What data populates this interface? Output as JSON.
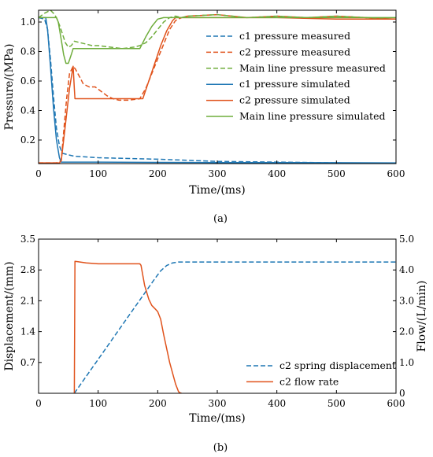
{
  "colors": {
    "blue": "#1f77b4",
    "orange": "#e0521b",
    "green": "#6fad3c",
    "axis": "#000000"
  },
  "chart_data": [
    {
      "type": "line",
      "caption": "(a)",
      "xlabel": "Time/(ms)",
      "ylabel": "Pressure/(MPa)",
      "xlim": [
        0,
        600
      ],
      "ylim": [
        0.04,
        1.08
      ],
      "xticks": [
        0,
        100,
        200,
        300,
        400,
        500,
        600
      ],
      "yticks": [
        0.2,
        0.4,
        0.6,
        0.8,
        1.0
      ],
      "yticklabels": [
        "0.2",
        "0.4",
        "0.6",
        "0.8",
        "1.0"
      ],
      "grid": false,
      "legend_position": "top-right",
      "series": [
        {
          "name": "c1 pressure measured",
          "color": "blue",
          "style": "dashed",
          "x": [
            0,
            10,
            15,
            20,
            25,
            30,
            35,
            40,
            50,
            60,
            100,
            200,
            300,
            400,
            500,
            600
          ],
          "y": [
            1.03,
            1.02,
            0.95,
            0.75,
            0.5,
            0.28,
            0.16,
            0.11,
            0.1,
            0.09,
            0.08,
            0.07,
            0.055,
            0.05,
            0.045,
            0.04
          ]
        },
        {
          "name": "c2 pressure measured",
          "color": "orange",
          "style": "dashed",
          "x": [
            0,
            30,
            38,
            42,
            47,
            52,
            58,
            62,
            66,
            70,
            75,
            85,
            95,
            105,
            115,
            125,
            135,
            150,
            170,
            180,
            190,
            200,
            210,
            220,
            230,
            240,
            250,
            300,
            350,
            400,
            450,
            500,
            550,
            600
          ],
          "y": [
            0.045,
            0.045,
            0.06,
            0.25,
            0.48,
            0.65,
            0.7,
            0.68,
            0.65,
            0.62,
            0.58,
            0.56,
            0.56,
            0.53,
            0.5,
            0.48,
            0.47,
            0.47,
            0.48,
            0.55,
            0.65,
            0.75,
            0.85,
            0.95,
            1.01,
            1.03,
            1.04,
            1.05,
            1.03,
            1.04,
            1.03,
            1.04,
            1.03,
            1.02
          ]
        },
        {
          "name": "Main line pressure measured",
          "color": "green",
          "style": "dashed",
          "x": [
            0,
            10,
            20,
            25,
            30,
            35,
            40,
            45,
            50,
            55,
            60,
            70,
            80,
            90,
            100,
            120,
            140,
            160,
            170,
            180,
            190,
            200,
            210,
            220,
            230,
            240,
            250,
            300,
            350,
            400,
            450,
            500,
            550,
            600
          ],
          "y": [
            1.03,
            1.06,
            1.08,
            1.06,
            1.03,
            0.98,
            0.92,
            0.86,
            0.83,
            0.84,
            0.87,
            0.86,
            0.85,
            0.84,
            0.84,
            0.83,
            0.82,
            0.83,
            0.84,
            0.86,
            0.9,
            0.95,
            1.0,
            1.03,
            1.04,
            1.03,
            1.04,
            1.05,
            1.03,
            1.04,
            1.03,
            1.04,
            1.03,
            1.02
          ]
        },
        {
          "name": "c1 pressure simulated",
          "color": "blue",
          "style": "solid",
          "x": [
            0,
            12,
            15,
            20,
            25,
            30,
            35,
            38,
            50,
            100,
            200,
            300,
            400,
            500,
            600
          ],
          "y": [
            1.03,
            1.03,
            0.95,
            0.7,
            0.42,
            0.2,
            0.08,
            0.05,
            0.05,
            0.05,
            0.048,
            0.047,
            0.047,
            0.046,
            0.045
          ]
        },
        {
          "name": "c2 pressure simulated",
          "color": "orange",
          "style": "solid",
          "x": [
            0,
            35,
            38,
            45,
            52,
            58,
            60,
            61,
            100,
            150,
            175,
            185,
            195,
            205,
            215,
            225,
            230,
            300,
            400,
            500,
            600
          ],
          "y": [
            0.045,
            0.045,
            0.06,
            0.3,
            0.55,
            0.7,
            0.55,
            0.48,
            0.48,
            0.48,
            0.48,
            0.6,
            0.72,
            0.84,
            0.94,
            1.01,
            1.03,
            1.03,
            1.03,
            1.02,
            1.02
          ]
        },
        {
          "name": "Main line pressure simulated",
          "color": "green",
          "style": "solid",
          "x": [
            0,
            30,
            33,
            38,
            42,
            46,
            50,
            55,
            58,
            60,
            100,
            150,
            170,
            180,
            190,
            200,
            210,
            300,
            400,
            500,
            600
          ],
          "y": [
            1.03,
            1.03,
            1.0,
            0.88,
            0.78,
            0.72,
            0.72,
            0.78,
            0.82,
            0.82,
            0.82,
            0.82,
            0.82,
            0.9,
            0.97,
            1.02,
            1.03,
            1.03,
            1.03,
            1.03,
            1.03
          ]
        }
      ]
    },
    {
      "type": "line",
      "caption": "(b)",
      "xlabel": "Time/(ms)",
      "ylabel": "Displacement/(mm)",
      "ylabel_right": "Flow/(L/min)",
      "xlim": [
        0,
        600
      ],
      "ylim": [
        0,
        3.5
      ],
      "ylim_right": [
        0,
        5.0
      ],
      "xticks": [
        0,
        100,
        200,
        300,
        400,
        500,
        600
      ],
      "yticks": [
        0.7,
        1.4,
        2.1,
        2.8,
        3.5
      ],
      "yticklabels": [
        "0.7",
        "1.4",
        "2.1",
        "2.8",
        "3.5"
      ],
      "yticks_right": [
        0,
        1,
        2,
        3,
        4,
        5
      ],
      "yticklabels_right": [
        "0",
        "1.0",
        "2.0",
        "3.0",
        "4.0",
        "5.0"
      ],
      "grid": false,
      "legend_position": "bottom-right",
      "series": [
        {
          "name": "c2 spring displacement",
          "color": "blue",
          "style": "dashed",
          "axis": "left",
          "x": [
            60,
            195,
            205,
            215,
            225,
            235,
            600
          ],
          "y": [
            0,
            2.6,
            2.78,
            2.9,
            2.96,
            2.98,
            2.98
          ]
        },
        {
          "name": "c2 flow rate",
          "color": "orange",
          "style": "solid",
          "axis": "right",
          "x": [
            60,
            61,
            65,
            80,
            100,
            170,
            172,
            178,
            185,
            190,
            195,
            200,
            205,
            210,
            220,
            230,
            235,
            238,
            240
          ],
          "y": [
            0,
            4.28,
            4.27,
            4.23,
            4.2,
            4.2,
            4.15,
            3.5,
            3.05,
            2.85,
            2.75,
            2.65,
            2.4,
            1.9,
            1.0,
            0.3,
            0.05,
            0.01,
            0.0
          ]
        }
      ]
    }
  ]
}
